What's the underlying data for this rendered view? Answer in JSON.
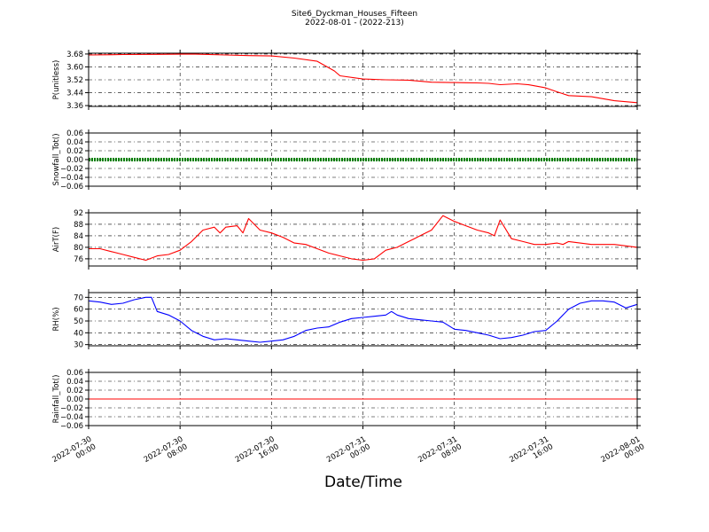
{
  "figure": {
    "title": "Site6_Dyckman_Houses_Fifteen",
    "subtitle": "2022-08-01 - (2022-213)",
    "xlabel": "Date/Time"
  },
  "chart_data": [
    {
      "type": "line",
      "ylabel": "P(unitless)",
      "ylim": [
        3.355,
        3.685
      ],
      "yticks": [
        "3.68",
        "3.60",
        "3.52",
        "3.44",
        "3.36"
      ],
      "ytick_values": [
        3.68,
        3.6,
        3.52,
        3.44,
        3.36
      ],
      "color": "#ff0000",
      "grid": true,
      "series": [
        {
          "x": [
            0,
            3,
            6,
            9,
            12,
            14,
            16,
            18,
            20,
            21.5,
            22,
            24,
            26,
            28,
            30,
            32,
            33,
            34,
            35,
            36,
            37.5,
            38.5,
            40,
            41,
            42,
            44,
            46,
            48
          ],
          "values": [
            3.674,
            3.677,
            3.678,
            3.68,
            3.674,
            3.67,
            3.668,
            3.655,
            3.635,
            3.575,
            3.545,
            3.525,
            3.52,
            3.518,
            3.505,
            3.503,
            3.502,
            3.501,
            3.498,
            3.49,
            3.495,
            3.489,
            3.47,
            3.445,
            3.422,
            3.415,
            3.39,
            3.378
          ]
        }
      ]
    },
    {
      "type": "line",
      "ylabel": "Snowfall_Tot()",
      "ylim": [
        -0.06,
        0.06
      ],
      "yticks": [
        "0.06",
        "0.04",
        "0.02",
        "0.00",
        "−0.02",
        "−0.04",
        "−0.06"
      ],
      "ytick_values": [
        0.06,
        0.04,
        0.02,
        0.0,
        -0.02,
        -0.04,
        -0.06
      ],
      "color": "#008000",
      "grid": true,
      "series": [
        {
          "x": [
            0,
            48
          ],
          "values": [
            0,
            0
          ]
        }
      ]
    },
    {
      "type": "line",
      "ylabel": "AirT(F)",
      "ylim": [
        73.5,
        92
      ],
      "yticks": [
        "92",
        "88",
        "84",
        "80",
        "76"
      ],
      "ytick_values": [
        92,
        88,
        84,
        80,
        76
      ],
      "color": "#ff0000",
      "grid": true,
      "series": [
        {
          "x": [
            0,
            1,
            2,
            3,
            4,
            5,
            6,
            7,
            8,
            9,
            10,
            11,
            11.5,
            12,
            13,
            13.5,
            14,
            15,
            16,
            17,
            18,
            19,
            20,
            21,
            22,
            23,
            24,
            25,
            26,
            27,
            28,
            28.5,
            29,
            30,
            31,
            32,
            33,
            34,
            35,
            35.5,
            36,
            37,
            38,
            39,
            40,
            41,
            41.5,
            42,
            43,
            44,
            45,
            46,
            47,
            48
          ],
          "values": [
            79.5,
            79.5,
            78.5,
            77.5,
            76.5,
            75.5,
            77,
            77.5,
            79,
            82,
            86,
            87,
            85,
            87,
            87.5,
            85,
            90,
            86,
            85,
            83.5,
            81.5,
            81,
            79.5,
            78,
            77,
            76,
            75.5,
            76,
            79,
            80,
            82,
            83,
            84,
            86,
            91,
            89,
            87.5,
            86,
            85,
            84,
            89.5,
            83,
            82,
            81,
            81,
            81.5,
            81,
            82,
            81.5,
            81,
            81,
            81,
            80.5,
            80
          ]
        }
      ]
    },
    {
      "type": "line",
      "ylabel": "RH(%)",
      "ylim": [
        29,
        74
      ],
      "yticks": [
        "70",
        "60",
        "50",
        "40",
        "30"
      ],
      "ytick_values": [
        70,
        60,
        50,
        40,
        30
      ],
      "color": "#0000ff",
      "grid": true,
      "series": [
        {
          "x": [
            0,
            1,
            2,
            3,
            4,
            5,
            5.5,
            6,
            7,
            8,
            9,
            10,
            11,
            12,
            13,
            14,
            15,
            16,
            17,
            18,
            19,
            20,
            21,
            22,
            23,
            24,
            25,
            26,
            26.5,
            27,
            28,
            29,
            30,
            31,
            32,
            33,
            34,
            35,
            36,
            37,
            38,
            39,
            40,
            41,
            42,
            43,
            44,
            45,
            46,
            47,
            48
          ],
          "values": [
            67,
            66,
            64,
            65,
            68,
            70,
            70,
            58,
            55,
            50,
            42,
            37,
            34,
            35,
            34,
            33,
            32,
            33,
            34,
            37,
            42,
            44,
            45,
            49,
            52,
            53,
            54,
            55,
            58,
            55,
            52,
            51,
            50,
            49,
            43,
            42,
            40,
            38,
            35,
            36,
            38,
            41,
            42,
            50,
            60,
            65,
            67,
            67,
            66,
            61,
            64
          ]
        }
      ]
    },
    {
      "type": "line",
      "ylabel": "Rainfall_Tot()",
      "ylim": [
        -0.06,
        0.06
      ],
      "yticks": [
        "0.06",
        "0.04",
        "0.02",
        "0.00",
        "−0.02",
        "−0.04",
        "−0.06"
      ],
      "ytick_values": [
        0.06,
        0.04,
        0.02,
        0.0,
        -0.02,
        -0.04,
        -0.06
      ],
      "color": "#ff0000",
      "grid": true,
      "series": [
        {
          "x": [
            0,
            48
          ],
          "values": [
            0,
            0
          ]
        }
      ]
    }
  ],
  "xaxis": {
    "xlim": [
      0,
      48
    ],
    "tick_positions": [
      0,
      8,
      16,
      24,
      32,
      40,
      48
    ],
    "tick_dates": [
      "2022-07-30",
      "2022-07-30",
      "2022-07-30",
      "2022-07-31",
      "2022-07-31",
      "2022-07-31",
      "2022-08-01"
    ],
    "tick_times": [
      "00:00",
      "08:00",
      "16:00",
      "00:00",
      "08:00",
      "16:00",
      "00:00"
    ]
  }
}
